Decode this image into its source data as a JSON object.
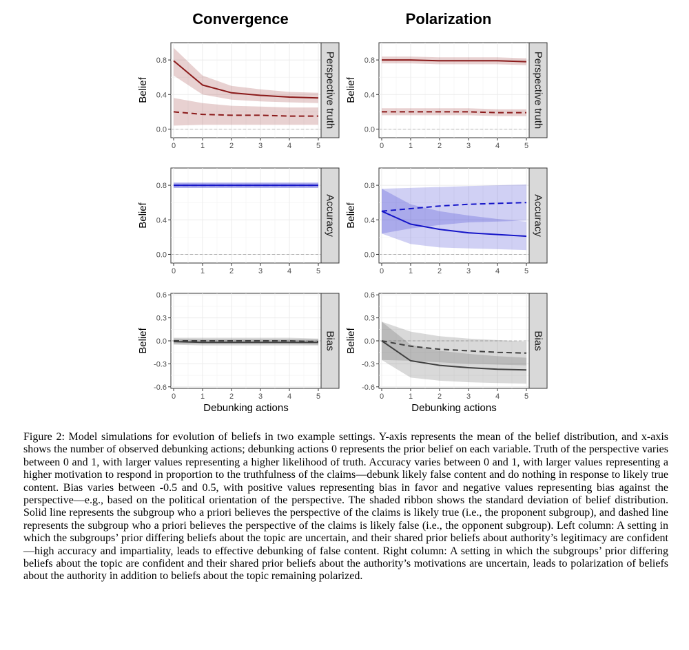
{
  "column_titles": [
    "Convergence",
    "Polarization"
  ],
  "row_labels": [
    "Perspective truth",
    "Accuracy",
    "Bias"
  ],
  "y_axis_title": "Belief",
  "x_axis_title": "Debunking actions",
  "caption": "Figure 2: Model simulations for evolution of beliefs in two example settings. Y-axis represents the mean of the belief distribution, and x-axis shows the number of observed debunking actions; debunking actions 0 represents the prior belief on each variable. Truth of the perspective varies between 0 and 1, with larger values representing a higher likelihood of truth. Accuracy varies between 0 and 1, with larger values representing a higher motivation to respond in proportion to the truthfulness of the claims—debunk likely false content and do nothing in response to likely true content. Bias varies between -0.5 and 0.5, with positive values representing bias in favor and negative values representing bias against the perspective—e.g., based on the political orientation of the perspective. The shaded ribbon shows the standard deviation of belief distribution. Solid line represents the subgroup who a priori believes the perspective of the claims is likely true (i.e., the proponent subgroup), and dashed line represents the subgroup who a priori believes the perspective of the claims is likely false (i.e., the opponent subgroup). Left column: A setting in which the subgroups’ prior differing beliefs about the topic are uncertain, and their shared prior beliefs about authority’s legitimacy are confident—high accuracy and impartiality, leads to effective debunking of false content. Right column: A setting in which the subgroups’ prior differing beliefs about the topic are confident and their shared prior beliefs about the authority’s motivations are uncertain, leads to polarization of beliefs about the authority in addition to beliefs about the topic remaining polarized.",
  "colors": {
    "truth": "#8b1a1a",
    "accuracy": "#1515c8",
    "bias": "#404040"
  },
  "chart_data": [
    {
      "type": "line",
      "column": "Convergence",
      "row": "Perspective truth",
      "x": [
        0,
        1,
        2,
        3,
        4,
        5
      ],
      "xlim": [
        0,
        5
      ],
      "ylim": [
        -0.1,
        1.0
      ],
      "yticks": [
        0.0,
        0.4,
        0.8
      ],
      "ytick_labels": [
        "0.0",
        "0.4",
        "0.8"
      ],
      "show_xlabel": false,
      "color": "#8b1a1a",
      "series": [
        {
          "style": "solid",
          "values": [
            0.79,
            0.51,
            0.42,
            0.39,
            0.37,
            0.36
          ],
          "sd_lower": [
            0.62,
            0.4,
            0.34,
            0.32,
            0.31,
            0.3
          ],
          "sd_upper": [
            0.94,
            0.62,
            0.5,
            0.46,
            0.43,
            0.42
          ]
        },
        {
          "style": "dashed",
          "values": [
            0.2,
            0.17,
            0.16,
            0.16,
            0.15,
            0.15
          ],
          "sd_lower": [
            0.04,
            0.05,
            0.05,
            0.05,
            0.05,
            0.05
          ],
          "sd_upper": [
            0.36,
            0.3,
            0.27,
            0.26,
            0.25,
            0.25
          ]
        }
      ]
    },
    {
      "type": "line",
      "column": "Polarization",
      "row": "Perspective truth",
      "x": [
        0,
        1,
        2,
        3,
        4,
        5
      ],
      "xlim": [
        0,
        5
      ],
      "ylim": [
        -0.1,
        1.0
      ],
      "yticks": [
        0.0,
        0.4,
        0.8
      ],
      "ytick_labels": [
        "0.0",
        "0.4",
        "0.8"
      ],
      "show_xlabel": false,
      "color": "#8b1a1a",
      "series": [
        {
          "style": "solid",
          "values": [
            0.8,
            0.8,
            0.79,
            0.79,
            0.79,
            0.78
          ],
          "sd_lower": [
            0.76,
            0.76,
            0.75,
            0.75,
            0.75,
            0.74
          ],
          "sd_upper": [
            0.84,
            0.84,
            0.83,
            0.83,
            0.83,
            0.82
          ]
        },
        {
          "style": "dashed",
          "values": [
            0.2,
            0.2,
            0.2,
            0.2,
            0.19,
            0.19
          ],
          "sd_lower": [
            0.16,
            0.16,
            0.16,
            0.16,
            0.15,
            0.15
          ],
          "sd_upper": [
            0.24,
            0.24,
            0.24,
            0.24,
            0.23,
            0.23
          ]
        }
      ]
    },
    {
      "type": "line",
      "column": "Convergence",
      "row": "Accuracy",
      "x": [
        0,
        1,
        2,
        3,
        4,
        5
      ],
      "xlim": [
        0,
        5
      ],
      "ylim": [
        -0.1,
        1.0
      ],
      "yticks": [
        0.0,
        0.4,
        0.8
      ],
      "ytick_labels": [
        "0.0",
        "0.4",
        "0.8"
      ],
      "show_xlabel": false,
      "color": "#1515c8",
      "series": [
        {
          "style": "solid",
          "values": [
            0.8,
            0.8,
            0.8,
            0.8,
            0.8,
            0.8
          ],
          "sd_lower": [
            0.77,
            0.77,
            0.77,
            0.77,
            0.77,
            0.77
          ],
          "sd_upper": [
            0.83,
            0.83,
            0.83,
            0.83,
            0.83,
            0.83
          ]
        },
        {
          "style": "dashed",
          "values": [
            0.8,
            0.8,
            0.8,
            0.8,
            0.8,
            0.8
          ],
          "sd_lower": [
            0.77,
            0.77,
            0.77,
            0.77,
            0.77,
            0.77
          ],
          "sd_upper": [
            0.83,
            0.83,
            0.83,
            0.83,
            0.83,
            0.83
          ]
        }
      ]
    },
    {
      "type": "line",
      "column": "Polarization",
      "row": "Accuracy",
      "x": [
        0,
        1,
        2,
        3,
        4,
        5
      ],
      "xlim": [
        0,
        5
      ],
      "ylim": [
        -0.1,
        1.0
      ],
      "yticks": [
        0.0,
        0.4,
        0.8
      ],
      "ytick_labels": [
        "0.0",
        "0.4",
        "0.8"
      ],
      "show_xlabel": false,
      "color": "#1515c8",
      "series": [
        {
          "style": "solid",
          "values": [
            0.5,
            0.35,
            0.29,
            0.25,
            0.23,
            0.21
          ],
          "sd_lower": [
            0.24,
            0.12,
            0.08,
            0.07,
            0.06,
            0.05
          ],
          "sd_upper": [
            0.76,
            0.58,
            0.5,
            0.45,
            0.41,
            0.38
          ]
        },
        {
          "style": "dashed",
          "values": [
            0.5,
            0.53,
            0.56,
            0.58,
            0.59,
            0.6
          ],
          "sd_lower": [
            0.24,
            0.3,
            0.34,
            0.37,
            0.38,
            0.39
          ],
          "sd_upper": [
            0.76,
            0.77,
            0.78,
            0.79,
            0.8,
            0.81
          ]
        }
      ]
    },
    {
      "type": "line",
      "column": "Convergence",
      "row": "Bias",
      "x": [
        0,
        1,
        2,
        3,
        4,
        5
      ],
      "xlim": [
        0,
        5
      ],
      "ylim": [
        -0.62,
        0.62
      ],
      "yticks": [
        -0.6,
        -0.3,
        0.0,
        0.3,
        0.6
      ],
      "ytick_labels": [
        "-0.6",
        "-0.3",
        "0.0",
        "0.3",
        "0.6"
      ],
      "show_xlabel": true,
      "color": "#404040",
      "series": [
        {
          "style": "solid",
          "values": [
            -0.01,
            -0.02,
            -0.02,
            -0.02,
            -0.02,
            -0.02
          ],
          "sd_lower": [
            -0.05,
            -0.06,
            -0.06,
            -0.06,
            -0.06,
            -0.06
          ],
          "sd_upper": [
            0.03,
            0.02,
            0.02,
            0.02,
            0.02,
            0.02
          ]
        },
        {
          "style": "dashed",
          "values": [
            0.0,
            0.0,
            0.0,
            0.0,
            0.0,
            -0.01
          ],
          "sd_lower": [
            -0.04,
            -0.04,
            -0.04,
            -0.04,
            -0.04,
            -0.05
          ],
          "sd_upper": [
            0.04,
            0.04,
            0.04,
            0.04,
            0.04,
            0.03
          ]
        }
      ]
    },
    {
      "type": "line",
      "column": "Polarization",
      "row": "Bias",
      "x": [
        0,
        1,
        2,
        3,
        4,
        5
      ],
      "xlim": [
        0,
        5
      ],
      "ylim": [
        -0.62,
        0.62
      ],
      "yticks": [
        -0.6,
        -0.3,
        0.0,
        0.3,
        0.6
      ],
      "ytick_labels": [
        "-0.6",
        "-0.3",
        "0.0",
        "0.3",
        "0.6"
      ],
      "show_xlabel": true,
      "color": "#404040",
      "series": [
        {
          "style": "solid",
          "values": [
            0.0,
            -0.26,
            -0.32,
            -0.35,
            -0.37,
            -0.38
          ],
          "sd_lower": [
            -0.25,
            -0.48,
            -0.52,
            -0.54,
            -0.55,
            -0.56
          ],
          "sd_upper": [
            0.25,
            -0.05,
            -0.13,
            -0.17,
            -0.2,
            -0.22
          ]
        },
        {
          "style": "dashed",
          "values": [
            0.0,
            -0.07,
            -0.11,
            -0.13,
            -0.15,
            -0.16
          ],
          "sd_lower": [
            -0.25,
            -0.26,
            -0.28,
            -0.3,
            -0.31,
            -0.32
          ],
          "sd_upper": [
            0.25,
            0.12,
            0.06,
            0.03,
            0.01,
            -0.01
          ]
        }
      ]
    }
  ]
}
